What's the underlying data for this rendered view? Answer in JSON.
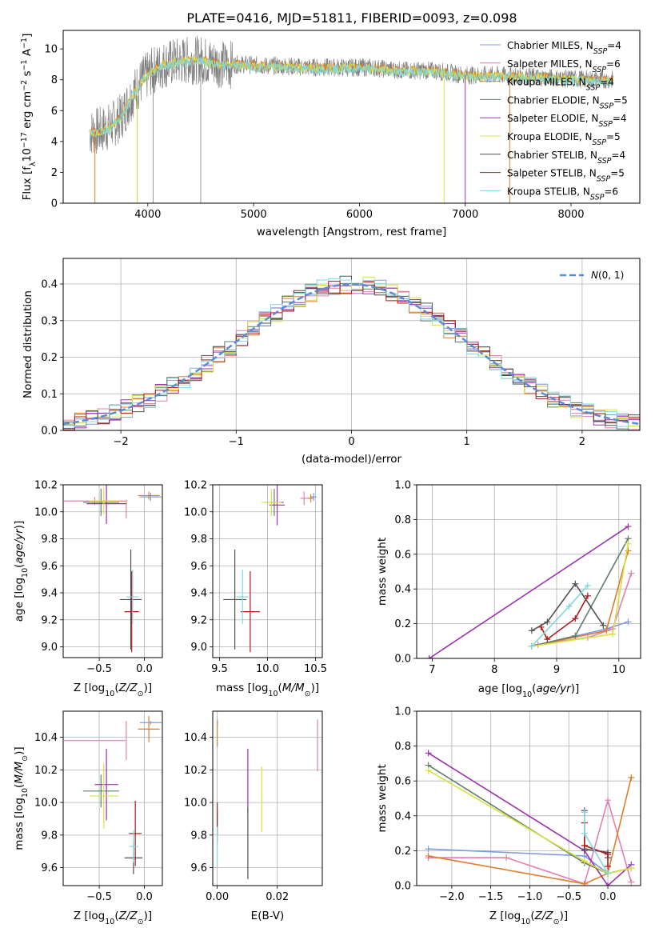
{
  "figure": {
    "title": "PLATE=0416, MJD=51811, FIBERID=0093, z=0.098"
  },
  "colors": {
    "chabrier_miles": "#7b9ce0",
    "salpeter_miles": "#e07fb0",
    "kroupa_miles": "#e07c2a",
    "chabrier_elodie": "#5f7f6a",
    "salpeter_elodie": "#9b30b0",
    "kroupa_elodie": "#d8e040",
    "chabrier_stelib": "#505050",
    "salpeter_stelib": "#b01818",
    "kroupa_stelib": "#7fd8e0",
    "gaussian": "#5a8ad8",
    "data_grey": "#808080"
  },
  "chart_data": [
    {
      "id": "spectrum",
      "type": "line",
      "title": "PLATE=0416, MJD=51811, FIBERID=0093, z=0.098",
      "xlabel": "wavelength [Angstrom, rest frame]",
      "ylabel": "Flux [f_λ 10^-17 erg cm^-2 s^-1 A^-1]",
      "xlim": [
        3200,
        8650
      ],
      "ylim": [
        0,
        11.2
      ],
      "xticks": [
        4000,
        5000,
        6000,
        7000,
        8000
      ],
      "yticks": [
        0,
        2,
        4,
        6,
        8,
        10
      ],
      "grid": false,
      "legend_position": "top-right",
      "legend": [
        "Chabrier MILES, N_SSP=4",
        "Salpeter MILES, N_SSP=6",
        "Kroupa MILES, N_SSP=4",
        "Chabrier ELODIE, N_SSP=5",
        "Salpeter ELODIE, N_SSP=4",
        "Kroupa ELODIE, N_SSP=5",
        "Chabrier STELIB, N_SSP=4",
        "Salpeter STELIB, N_SSP=5",
        "Kroupa STELIB, N_SSP=6"
      ],
      "continuum": {
        "x": [
          3450,
          3550,
          3650,
          3750,
          3850,
          3950,
          4050,
          4150,
          4300,
          4500,
          4700,
          4900,
          5100,
          5300,
          5500,
          5800,
          6100,
          6400,
          6700,
          7000,
          7300,
          7600,
          7900,
          8200,
          8400
        ],
        "y": [
          4.6,
          4.7,
          5.0,
          5.6,
          7.0,
          8.0,
          8.6,
          9.0,
          9.2,
          9.3,
          9.0,
          9.0,
          8.9,
          8.9,
          8.8,
          8.8,
          8.8,
          8.6,
          8.6,
          8.3,
          8.3,
          8.2,
          8.1,
          8.0,
          8.0
        ]
      }
    },
    {
      "id": "residuals",
      "type": "line",
      "xlabel": "(data-model)/error",
      "ylabel": "Normed distribution",
      "xlim": [
        -2.5,
        2.5
      ],
      "ylim": [
        0,
        0.47
      ],
      "xticks": [
        -2,
        -1,
        0,
        1,
        2
      ],
      "yticks": [
        0.0,
        0.1,
        0.2,
        0.3,
        0.4
      ],
      "grid": true,
      "legend_position": "top-right",
      "series": [
        {
          "name": "N(0,1)",
          "style": "dashed",
          "values": "gaussian"
        }
      ]
    },
    {
      "id": "age_vs_Z",
      "type": "scatter",
      "xlabel": "Z [log10(Z/Z_sun)]",
      "ylabel": "age [log10(age/yr)]",
      "xlim": [
        -0.9,
        0.2
      ],
      "ylim": [
        8.92,
        10.2
      ],
      "xticks": [
        -0.5,
        0.0
      ],
      "yticks": [
        9.0,
        9.2,
        9.4,
        9.6,
        9.8,
        10.0,
        10.2
      ],
      "grid": true,
      "errorbars": [
        {
          "model": "chabrier_miles",
          "x": 0.07,
          "y": 10.11,
          "xerr": 0.12,
          "yerr": 0.03
        },
        {
          "model": "salpeter_miles",
          "x": -0.55,
          "y": 10.08,
          "xerr": 0.34,
          "yerr": 0.03
        },
        {
          "model": "salpeter_miles",
          "x": -0.2,
          "y": 10.02,
          "xerr": 0.0,
          "yerr": 0.07
        },
        {
          "model": "kroupa_miles",
          "x": 0.05,
          "y": 10.12,
          "xerr": 0.12,
          "yerr": 0.03
        },
        {
          "model": "chabrier_elodie",
          "x": -0.48,
          "y": 10.07,
          "xerr": 0.2,
          "yerr": 0.1
        },
        {
          "model": "salpeter_elodie",
          "x": -0.42,
          "y": 10.06,
          "xerr": 0.22,
          "yerr": 0.15
        },
        {
          "model": "kroupa_elodie",
          "x": -0.45,
          "y": 10.08,
          "xerr": 0.16,
          "yerr": 0.1
        },
        {
          "model": "chabrier_stelib",
          "x": -0.15,
          "y": 9.35,
          "xerr": 0.12,
          "yerr": 0.37
        },
        {
          "model": "salpeter_stelib",
          "x": -0.14,
          "y": 9.26,
          "xerr": 0.08,
          "yerr": 0.3
        },
        {
          "model": "kroupa_stelib",
          "x": -0.13,
          "y": 9.37,
          "xerr": 0.07,
          "yerr": 0.2
        }
      ]
    },
    {
      "id": "age_vs_mass",
      "type": "scatter",
      "xlabel": "mass [log10(M/M_sun)]",
      "ylabel": "",
      "xlim": [
        9.43,
        10.57
      ],
      "ylim": [
        8.92,
        10.2
      ],
      "xticks": [
        9.5,
        10.0,
        10.5
      ],
      "yticks": [
        9.0,
        9.2,
        9.4,
        9.6,
        9.8,
        10.0,
        10.2
      ],
      "grid": true,
      "errorbars": [
        {
          "model": "chabrier_miles",
          "x": 10.48,
          "y": 10.11,
          "xerr": 0.03,
          "yerr": 0.03
        },
        {
          "model": "salpeter_miles",
          "x": 10.38,
          "y": 10.1,
          "xerr": 0.04,
          "yerr": 0.05
        },
        {
          "model": "kroupa_miles",
          "x": 10.45,
          "y": 10.1,
          "xerr": 0.03,
          "yerr": 0.03
        },
        {
          "model": "chabrier_elodie",
          "x": 10.07,
          "y": 10.07,
          "xerr": 0.1,
          "yerr": 0.1
        },
        {
          "model": "salpeter_elodie",
          "x": 10.1,
          "y": 10.05,
          "xerr": 0.08,
          "yerr": 0.15
        },
        {
          "model": "kroupa_elodie",
          "x": 10.04,
          "y": 10.07,
          "xerr": 0.1,
          "yerr": 0.1
        },
        {
          "model": "chabrier_stelib",
          "x": 9.66,
          "y": 9.35,
          "xerr": 0.12,
          "yerr": 0.37
        },
        {
          "model": "salpeter_stelib",
          "x": 9.82,
          "y": 9.26,
          "xerr": 0.1,
          "yerr": 0.3
        },
        {
          "model": "kroupa_stelib",
          "x": 9.74,
          "y": 9.37,
          "xerr": 0.06,
          "yerr": 0.2
        }
      ]
    },
    {
      "id": "massweight_vs_age",
      "type": "line",
      "xlabel": "age [log10(age/yr)]",
      "ylabel": "mass weight",
      "xlim": [
        6.75,
        10.35
      ],
      "ylim": [
        0,
        1.0
      ],
      "xticks": [
        7,
        8,
        9,
        10
      ],
      "yticks": [
        0.0,
        0.2,
        0.4,
        0.6,
        0.8,
        1.0
      ],
      "grid": true,
      "series": [
        {
          "model": "chabrier_miles",
          "x": [
            8.6,
            9.8,
            10.15
          ],
          "y": [
            0.07,
            0.17,
            0.21
          ]
        },
        {
          "model": "salpeter_miles",
          "x": [
            8.7,
            9.5,
            9.9,
            10.2
          ],
          "y": [
            0.08,
            0.12,
            0.17,
            0.49
          ]
        },
        {
          "model": "kroupa_miles",
          "x": [
            8.6,
            9.8,
            10.15
          ],
          "y": [
            0.07,
            0.16,
            0.62
          ]
        },
        {
          "model": "chabrier_elodie",
          "x": [
            8.6,
            9.3,
            10.15
          ],
          "y": [
            0.07,
            0.13,
            0.69
          ]
        },
        {
          "model": "salpeter_elodie",
          "x": [
            6.95,
            10.15
          ],
          "y": [
            0.0,
            0.76
          ]
        },
        {
          "model": "kroupa_elodie",
          "x": [
            8.6,
            9.9,
            10.15
          ],
          "y": [
            0.07,
            0.14,
            0.66
          ]
        },
        {
          "model": "chabrier_stelib",
          "x": [
            8.6,
            8.85,
            9.3,
            9.75
          ],
          "y": [
            0.16,
            0.21,
            0.43,
            0.19
          ]
        },
        {
          "model": "salpeter_stelib",
          "x": [
            8.75,
            8.85,
            9.3,
            9.5
          ],
          "y": [
            0.18,
            0.11,
            0.23,
            0.36
          ]
        },
        {
          "model": "kroupa_stelib",
          "x": [
            8.6,
            9.2,
            9.5
          ],
          "y": [
            0.07,
            0.3,
            0.42
          ]
        }
      ]
    },
    {
      "id": "mass_vs_Z",
      "type": "scatter",
      "xlabel": "Z [log10(Z/Z_sun)]",
      "ylabel": "mass [log10(M/M_sun)]",
      "xlim": [
        -0.9,
        0.2
      ],
      "ylim": [
        9.49,
        10.56
      ],
      "xticks": [
        -0.5,
        0.0
      ],
      "yticks": [
        9.6,
        9.8,
        10.0,
        10.2,
        10.4
      ],
      "grid": true,
      "errorbars": [
        {
          "model": "chabrier_miles",
          "x": 0.07,
          "y": 10.49,
          "xerr": 0.12,
          "yerr": 0.01
        },
        {
          "model": "salpeter_miles",
          "x": -0.55,
          "y": 10.38,
          "xerr": 0.34,
          "yerr": 0.0
        },
        {
          "model": "salpeter_miles",
          "x": -0.2,
          "y": 10.38,
          "xerr": 0.0,
          "yerr": 0.12
        },
        {
          "model": "kroupa_miles",
          "x": 0.05,
          "y": 10.45,
          "xerr": 0.12,
          "yerr": 0.08
        },
        {
          "model": "chabrier_elodie",
          "x": -0.48,
          "y": 10.07,
          "xerr": 0.2,
          "yerr": 0.1
        },
        {
          "model": "salpeter_elodie",
          "x": -0.42,
          "y": 10.11,
          "xerr": 0.13,
          "yerr": 0.22
        },
        {
          "model": "kroupa_elodie",
          "x": -0.45,
          "y": 10.04,
          "xerr": 0.16,
          "yerr": 0.2
        },
        {
          "model": "chabrier_stelib",
          "x": -0.12,
          "y": 9.66,
          "xerr": 0.1,
          "yerr": 0.1
        },
        {
          "model": "salpeter_stelib",
          "x": -0.1,
          "y": 9.81,
          "xerr": 0.07,
          "yerr": 0.2
        },
        {
          "model": "kroupa_stelib",
          "x": -0.12,
          "y": 9.73,
          "xerr": 0.05,
          "yerr": 0.1
        }
      ]
    },
    {
      "id": "mass_vs_ebv",
      "type": "scatter",
      "xlabel": "E(B-V)",
      "ylabel": "",
      "xlim": [
        -0.0015,
        0.035
      ],
      "ylim": [
        9.49,
        10.56
      ],
      "xticks": [
        0.0,
        0.02
      ],
      "yticks": [
        9.6,
        9.8,
        10.0,
        10.2,
        10.4
      ],
      "grid": true,
      "errorbars": [
        {
          "model": "chabrier_miles",
          "x": 0.0,
          "y": 10.49,
          "xerr": 0.0,
          "yerr": 0.02
        },
        {
          "model": "salpeter_miles",
          "x": 0.0334,
          "y": 10.35,
          "xerr": 0.0,
          "yerr": 0.16
        },
        {
          "model": "kroupa_miles",
          "x": 0.0,
          "y": 10.42,
          "xerr": 0.0,
          "yerr": 0.08
        },
        {
          "model": "chabrier_elodie",
          "x": 0.0,
          "y": 9.85,
          "xerr": 0.0,
          "yerr": 0.1
        },
        {
          "model": "salpeter_elodie",
          "x": 0.0102,
          "y": 10.13,
          "xerr": 0.0,
          "yerr": 0.2
        },
        {
          "model": "kroupa_elodie",
          "x": 0.0148,
          "y": 10.02,
          "xerr": 0.0,
          "yerr": 0.2
        },
        {
          "model": "chabrier_stelib",
          "x": 0.0102,
          "y": 9.75,
          "xerr": 0.0,
          "yerr": 0.22
        },
        {
          "model": "salpeter_stelib",
          "x": 0.0,
          "y": 9.9,
          "xerr": 0.0,
          "yerr": 0.1
        },
        {
          "model": "kroupa_stelib",
          "x": 0.0,
          "y": 9.73,
          "xerr": 0.0,
          "yerr": 0.12
        }
      ]
    },
    {
      "id": "massweight_vs_Z",
      "type": "line",
      "xlabel": "Z [log10(Z/Z_sun)]",
      "ylabel": "mass weight",
      "xlim": [
        -2.45,
        0.42
      ],
      "ylim": [
        0,
        1.0
      ],
      "xticks": [
        -2.0,
        -1.5,
        -1.0,
        -0.5,
        0.0
      ],
      "yticks": [
        0.0,
        0.2,
        0.4,
        0.6,
        0.8,
        1.0
      ],
      "grid": true,
      "series": [
        {
          "model": "chabrier_miles",
          "x": [
            -2.3,
            -0.3,
            0.0
          ],
          "y": [
            0.21,
            0.17,
            0.07
          ]
        },
        {
          "model": "salpeter_miles",
          "x": [
            -2.3,
            -1.3,
            -0.3,
            0.0,
            0.3
          ],
          "y": [
            0.16,
            0.16,
            0.01,
            0.49,
            0.02
          ]
        },
        {
          "model": "kroupa_miles",
          "x": [
            -2.3,
            -0.3,
            0.0,
            0.3
          ],
          "y": [
            0.17,
            0.01,
            0.07,
            0.62
          ]
        },
        {
          "model": "chabrier_elodie",
          "x": [
            -2.3,
            -0.3,
            0.0,
            0.3
          ],
          "y": [
            0.69,
            0.13,
            0.07,
            0.1
          ]
        },
        {
          "model": "salpeter_elodie",
          "x": [
            -2.3,
            -0.3,
            0.0,
            0.3
          ],
          "y": [
            0.76,
            0.2,
            0.0,
            0.12
          ]
        },
        {
          "model": "kroupa_elodie",
          "x": [
            -2.3,
            -0.3,
            0.0,
            0.3
          ],
          "y": [
            0.66,
            0.14,
            0.07,
            0.1
          ]
        },
        {
          "model": "chabrier_stelib",
          "x": [
            -0.3,
            -0.3,
            0.0,
            0.0
          ],
          "y": [
            0.43,
            0.21,
            0.19,
            0.16
          ]
        },
        {
          "model": "salpeter_stelib",
          "x": [
            -0.3,
            -0.3,
            0.0,
            0.0
          ],
          "y": [
            0.36,
            0.23,
            0.18,
            0.11
          ]
        },
        {
          "model": "kroupa_stelib",
          "x": [
            -0.3,
            -0.3,
            0.0
          ],
          "y": [
            0.42,
            0.3,
            0.07
          ]
        }
      ]
    }
  ]
}
